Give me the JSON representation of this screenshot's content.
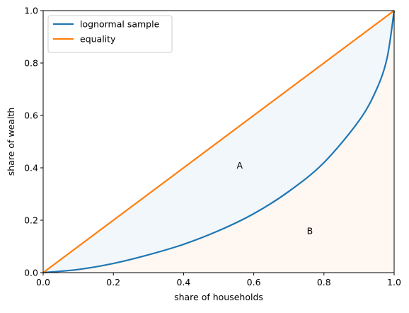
{
  "chart_data": {
    "type": "line",
    "title": "",
    "xlabel": "share of households",
    "ylabel": "share of wealth",
    "xlim": [
      0.0,
      1.0
    ],
    "ylim": [
      0.0,
      1.0
    ],
    "xticks": [
      "0.0",
      "0.2",
      "0.4",
      "0.6",
      "0.8",
      "1.0"
    ],
    "yticks": [
      "0.0",
      "0.2",
      "0.4",
      "0.6",
      "0.8",
      "1.0"
    ],
    "grid": false,
    "legend_position": "top-left",
    "series": [
      {
        "name": "lognormal sample",
        "color": "#1f77b4",
        "x": [
          0.0,
          0.1,
          0.2,
          0.3,
          0.4,
          0.5,
          0.6,
          0.7,
          0.8,
          0.9,
          0.95,
          0.98,
          1.0
        ],
        "y": [
          0.0,
          0.012,
          0.035,
          0.068,
          0.108,
          0.16,
          0.225,
          0.31,
          0.42,
          0.58,
          0.7,
          0.82,
          1.0
        ]
      },
      {
        "name": "equality",
        "color": "#ff7f0e",
        "x": [
          0.0,
          1.0
        ],
        "y": [
          0.0,
          1.0
        ]
      }
    ],
    "regions": [
      {
        "label": "A",
        "between": [
          "equality",
          "lognormal sample"
        ],
        "fill": "#1f77b4",
        "opacity": 0.06,
        "label_at": [
          0.56,
          0.41
        ]
      },
      {
        "label": "B",
        "between": [
          "lognormal sample",
          "baseline"
        ],
        "fill": "#ff7f0e",
        "opacity": 0.06,
        "label_at": [
          0.76,
          0.16
        ]
      }
    ]
  }
}
